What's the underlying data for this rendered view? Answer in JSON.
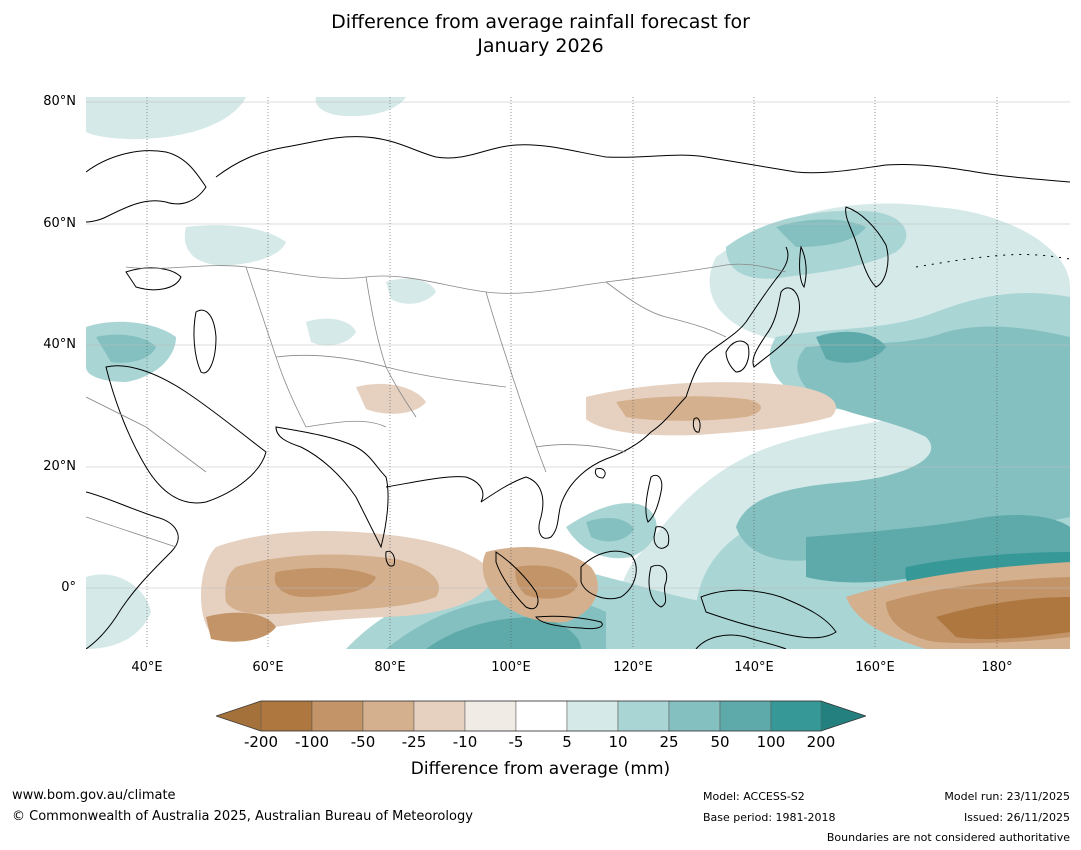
{
  "title": {
    "line1": "Difference from average rainfall forecast for",
    "line2": "January 2026"
  },
  "map": {
    "lat_labels": [
      "80°N",
      "60°N",
      "40°N",
      "20°N",
      "0°"
    ],
    "lon_labels": [
      "40°E",
      "60°E",
      "80°E",
      "100°E",
      "120°E",
      "140°E",
      "160°E",
      "180°"
    ],
    "extent": {
      "lon_min": 30,
      "lon_max": 192,
      "lat_min": -10,
      "lat_max": 81
    }
  },
  "colorbar": {
    "ticks": [
      "-200",
      "-100",
      "-50",
      "-25",
      "-10",
      "-5",
      "5",
      "10",
      "25",
      "50",
      "100",
      "200"
    ],
    "colors": [
      "#a4713a",
      "#ae7740",
      "#c29468",
      "#d4b08e",
      "#e6d1c0",
      "#f1ebe6",
      "#ffffff",
      "#d4e9e8",
      "#aad5d5",
      "#85c0c0",
      "#5eaaab",
      "#369997",
      "#23807e"
    ],
    "title": "Difference from average (mm)"
  },
  "footer": {
    "website": "www.bom.gov.au/climate",
    "copyright": "© Commonwealth of Australia 2025, Australian Bureau of Meteorology",
    "model": "Model: ACCESS-S2",
    "base_period": "Base period: 1981-2018",
    "model_run": "Model run: 23/11/2025",
    "issued": "Issued: 26/11/2025",
    "disclaimer": "Boundaries are not considered authoritative"
  }
}
